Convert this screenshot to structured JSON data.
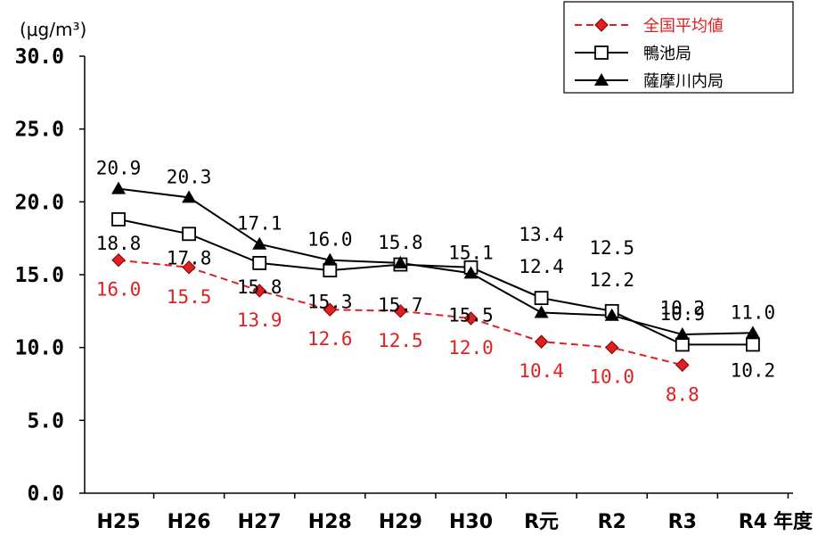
{
  "chart_data": {
    "type": "line",
    "ylabel": "(μg/m³)",
    "xlabel": "年度",
    "ylim": [
      0,
      30
    ],
    "y_ticks": [
      "0.0",
      "5.0",
      "10.0",
      "15.0",
      "20.0",
      "25.0",
      "30.0"
    ],
    "categories": [
      "H25",
      "H26",
      "H27",
      "H28",
      "H29",
      "H30",
      "R元",
      "R2",
      "R3",
      "R4"
    ],
    "grid": false,
    "legend_position": "top-right",
    "series": [
      {
        "name": "全国平均値",
        "color": "#e02020",
        "marker": "diamond",
        "dashed": true,
        "values": [
          16.0,
          15.5,
          13.9,
          12.6,
          12.5,
          12.0,
          10.4,
          10.0,
          8.8,
          null
        ],
        "labels": [
          "16.0",
          "15.5",
          "13.9",
          "12.6",
          "12.5",
          "12.0",
          "10.4",
          "10.0",
          "8.8",
          null
        ]
      },
      {
        "name": "鴨池局",
        "color": "#000000",
        "marker": "square-open",
        "dashed": false,
        "values": [
          18.8,
          17.8,
          15.8,
          15.3,
          15.7,
          15.5,
          13.4,
          12.5,
          10.2,
          10.2
        ],
        "labels": [
          "18.8",
          "17.8",
          "15.8",
          "15.3",
          "15.7",
          "15.5",
          "13.4",
          "12.5",
          "10.2",
          "10.2"
        ]
      },
      {
        "name": "薩摩川内局",
        "color": "#000000",
        "marker": "triangle",
        "dashed": false,
        "values": [
          20.9,
          20.3,
          17.1,
          16.0,
          15.8,
          15.1,
          12.4,
          12.2,
          10.9,
          11.0
        ],
        "labels": [
          "20.9",
          "20.3",
          "17.1",
          "16.0",
          "15.8",
          "15.1",
          "12.4",
          "12.2",
          "10.9",
          "11.0"
        ]
      }
    ]
  }
}
